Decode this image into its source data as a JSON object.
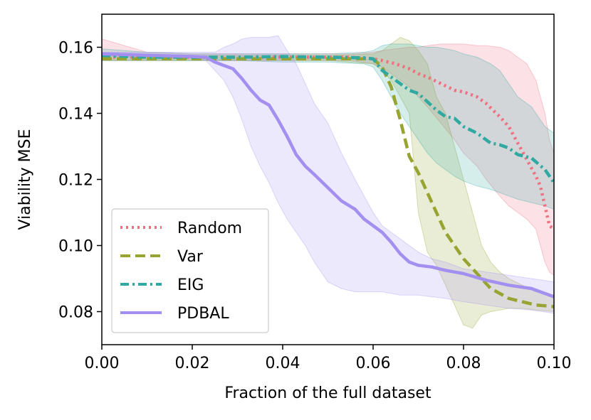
{
  "chart_data": {
    "type": "line",
    "title": "",
    "xlabel": "Fraction of the full dataset",
    "ylabel": "Viability MSE",
    "xlim": [
      0.0,
      0.1
    ],
    "ylim": [
      0.07,
      0.17
    ],
    "xticks": [
      0.0,
      0.02,
      0.04,
      0.06,
      0.08,
      0.1
    ],
    "xtick_labels": [
      "0.00",
      "0.02",
      "0.04",
      "0.06",
      "0.08",
      "0.10"
    ],
    "yticks": [
      0.08,
      0.1,
      0.12,
      0.14,
      0.16
    ],
    "ytick_labels": [
      "0.08",
      "0.10",
      "0.12",
      "0.14",
      "0.16"
    ],
    "grid": false,
    "legend_position": "lower-left",
    "series": [
      {
        "name": "Random",
        "color": "#f07080",
        "style": "dotted",
        "x": [
          0.0,
          0.01,
          0.02,
          0.03,
          0.04,
          0.05,
          0.055,
          0.06,
          0.062,
          0.065,
          0.068,
          0.07,
          0.072,
          0.075,
          0.078,
          0.08,
          0.083,
          0.085,
          0.088,
          0.09,
          0.092,
          0.094,
          0.096,
          0.097,
          0.098,
          0.099,
          0.1
        ],
        "y": [
          0.157,
          0.157,
          0.157,
          0.157,
          0.157,
          0.157,
          0.157,
          0.1565,
          0.156,
          0.155,
          0.1535,
          0.152,
          0.151,
          0.149,
          0.147,
          0.1465,
          0.145,
          0.143,
          0.139,
          0.136,
          0.131,
          0.126,
          0.121,
          0.118,
          0.112,
          0.106,
          0.105
        ],
        "band_lower": [
          0.156,
          0.156,
          0.156,
          0.156,
          0.156,
          0.156,
          0.156,
          0.155,
          0.154,
          0.151,
          0.148,
          0.145,
          0.142,
          0.137,
          0.132,
          0.128,
          0.124,
          0.12,
          0.115,
          0.112,
          0.11,
          0.108,
          0.105,
          0.1,
          0.095,
          0.092,
          0.091
        ],
        "band_upper": [
          0.1625,
          0.1585,
          0.158,
          0.158,
          0.158,
          0.158,
          0.158,
          0.1585,
          0.159,
          0.1595,
          0.16,
          0.16,
          0.1605,
          0.161,
          0.161,
          0.161,
          0.1605,
          0.1605,
          0.16,
          0.159,
          0.157,
          0.155,
          0.15,
          0.145,
          0.14,
          0.132,
          0.128
        ]
      },
      {
        "name": "Var",
        "color": "#97a431",
        "style": "dashed",
        "x": [
          0.0,
          0.01,
          0.02,
          0.03,
          0.04,
          0.05,
          0.06,
          0.062,
          0.064,
          0.066,
          0.068,
          0.07,
          0.072,
          0.074,
          0.076,
          0.078,
          0.08,
          0.082,
          0.084,
          0.086,
          0.088,
          0.09,
          0.093,
          0.096,
          0.1
        ],
        "y": [
          0.1565,
          0.1565,
          0.1565,
          0.1565,
          0.1565,
          0.1565,
          0.1565,
          0.154,
          0.148,
          0.138,
          0.127,
          0.122,
          0.116,
          0.11,
          0.104,
          0.1,
          0.096,
          0.093,
          0.09,
          0.087,
          0.0855,
          0.084,
          0.083,
          0.082,
          0.0815
        ],
        "band_lower": [
          0.156,
          0.156,
          0.156,
          0.156,
          0.156,
          0.156,
          0.155,
          0.153,
          0.15,
          0.145,
          0.14,
          0.11,
          0.098,
          0.094,
          0.088,
          0.082,
          0.076,
          0.075,
          0.079,
          0.08,
          0.0805,
          0.081,
          0.081,
          0.0805,
          0.08
        ],
        "band_upper": [
          0.1575,
          0.1575,
          0.1575,
          0.1575,
          0.1575,
          0.1575,
          0.158,
          0.159,
          0.161,
          0.163,
          0.162,
          0.159,
          0.155,
          0.145,
          0.14,
          0.13,
          0.12,
          0.11,
          0.1,
          0.095,
          0.092,
          0.09,
          0.088,
          0.086,
          0.085
        ]
      },
      {
        "name": "EIG",
        "color": "#2fa9a1",
        "style": "dashdot",
        "x": [
          0.0,
          0.01,
          0.02,
          0.03,
          0.04,
          0.05,
          0.058,
          0.06,
          0.062,
          0.064,
          0.066,
          0.068,
          0.07,
          0.072,
          0.074,
          0.076,
          0.078,
          0.08,
          0.083,
          0.086,
          0.088,
          0.09,
          0.092,
          0.095,
          0.098,
          0.1
        ],
        "y": [
          0.1575,
          0.157,
          0.157,
          0.157,
          0.1572,
          0.157,
          0.1568,
          0.1565,
          0.153,
          0.151,
          0.149,
          0.147,
          0.146,
          0.1435,
          0.141,
          0.139,
          0.1385,
          0.136,
          0.134,
          0.131,
          0.1305,
          0.1295,
          0.1275,
          0.1265,
          0.123,
          0.119
        ],
        "band_lower": [
          0.156,
          0.156,
          0.156,
          0.156,
          0.1555,
          0.1555,
          0.155,
          0.154,
          0.15,
          0.145,
          0.14,
          0.136,
          0.132,
          0.128,
          0.125,
          0.123,
          0.121,
          0.1195,
          0.118,
          0.117,
          0.116,
          0.115,
          0.114,
          0.113,
          0.112,
          0.111
        ],
        "band_upper": [
          0.1595,
          0.1585,
          0.158,
          0.158,
          0.158,
          0.158,
          0.1585,
          0.159,
          0.1605,
          0.161,
          0.161,
          0.161,
          0.1605,
          0.16,
          0.16,
          0.1595,
          0.159,
          0.158,
          0.157,
          0.155,
          0.153,
          0.149,
          0.145,
          0.142,
          0.136,
          0.134
        ]
      },
      {
        "name": "PDBAL",
        "color": "#a38ff0",
        "style": "solid",
        "x": [
          0.0,
          0.005,
          0.01,
          0.015,
          0.02,
          0.023,
          0.025,
          0.027,
          0.029,
          0.031,
          0.033,
          0.035,
          0.037,
          0.039,
          0.041,
          0.043,
          0.045,
          0.047,
          0.05,
          0.053,
          0.056,
          0.058,
          0.06,
          0.062,
          0.064,
          0.066,
          0.068,
          0.07,
          0.073,
          0.076,
          0.08,
          0.085,
          0.09,
          0.095,
          0.1
        ],
        "y": [
          0.158,
          0.1578,
          0.1576,
          0.1574,
          0.1572,
          0.157,
          0.1555,
          0.1545,
          0.1535,
          0.1505,
          0.147,
          0.144,
          0.1425,
          0.138,
          0.133,
          0.1275,
          0.124,
          0.1215,
          0.1175,
          0.1135,
          0.111,
          0.108,
          0.106,
          0.104,
          0.101,
          0.0975,
          0.095,
          0.094,
          0.0935,
          0.0925,
          0.0915,
          0.0895,
          0.088,
          0.087,
          0.0845
        ],
        "band_lower": [
          0.1575,
          0.157,
          0.157,
          0.157,
          0.157,
          0.156,
          0.153,
          0.15,
          0.145,
          0.138,
          0.13,
          0.124,
          0.119,
          0.113,
          0.108,
          0.104,
          0.1,
          0.095,
          0.089,
          0.087,
          0.086,
          0.086,
          0.086,
          0.086,
          0.0855,
          0.085,
          0.085,
          0.085,
          0.0845,
          0.084,
          0.083,
          0.082,
          0.081,
          0.0805,
          0.0795
        ],
        "band_upper": [
          0.1585,
          0.1585,
          0.1585,
          0.1585,
          0.1585,
          0.1585,
          0.1585,
          0.16,
          0.161,
          0.1625,
          0.163,
          0.163,
          0.163,
          0.1635,
          0.159,
          0.155,
          0.149,
          0.143,
          0.137,
          0.128,
          0.12,
          0.115,
          0.11,
          0.106,
          0.104,
          0.102,
          0.1,
          0.098,
          0.096,
          0.095,
          0.093,
          0.092,
          0.091,
          0.09,
          0.089
        ]
      }
    ]
  }
}
